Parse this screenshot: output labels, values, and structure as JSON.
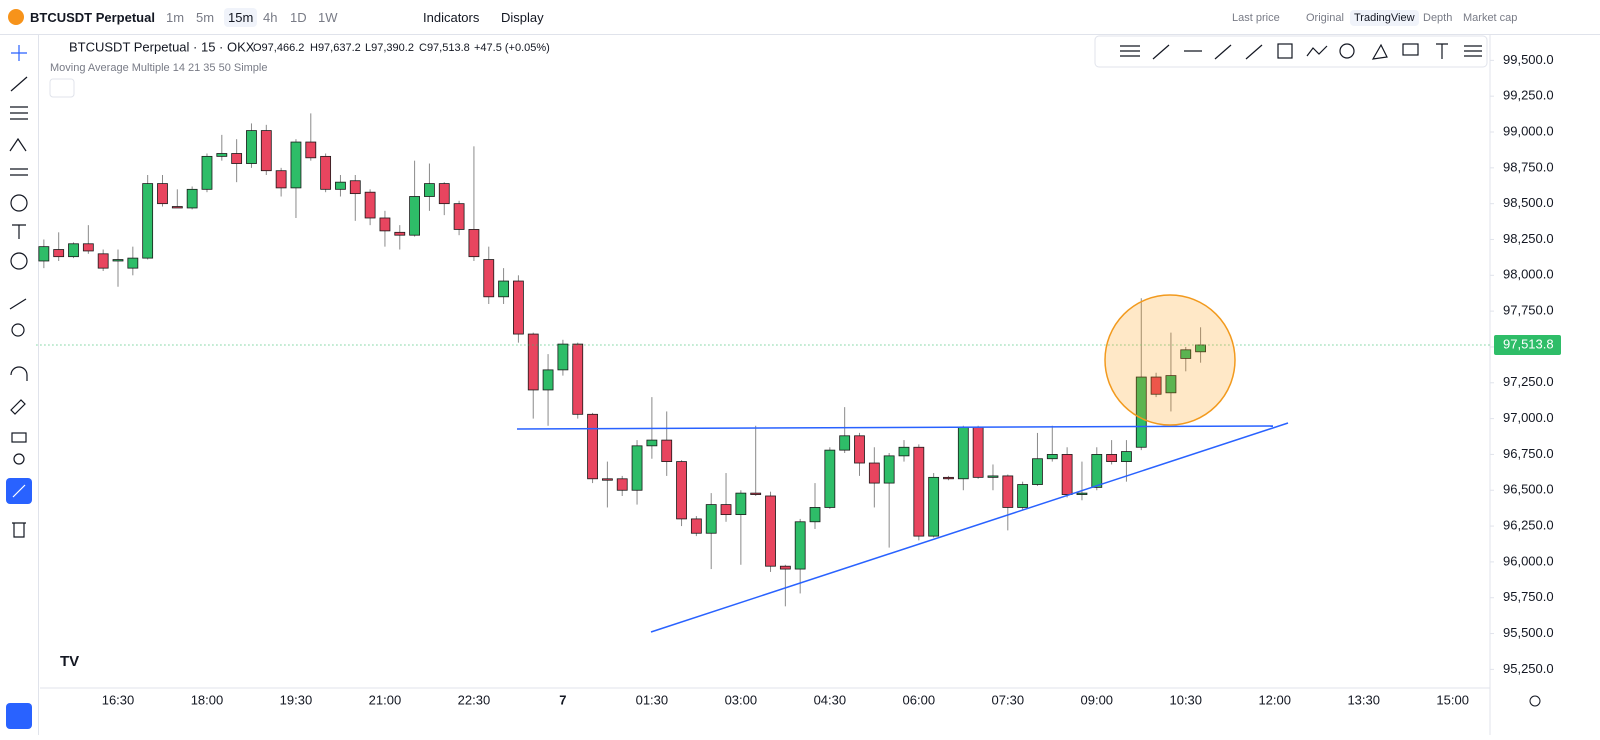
{
  "toolbar": {
    "symbol": "BTCUSDT Perpetual",
    "intervals": [
      "1m",
      "5m",
      "15m",
      "4h",
      "1D",
      "1W"
    ],
    "indicators": "Indicators",
    "display": "Display",
    "price_mode": "Last price",
    "views": [
      "Original",
      "TradingView",
      "Depth",
      "Market cap"
    ]
  },
  "legend": {
    "title": "BTCUSDT Perpetual · 15 · OKX",
    "ohlc": [
      "O97,466.2",
      "H97,637.2",
      "L97,390.2",
      "C97,513.8"
    ],
    "change": "+47.5 (+0.05%)",
    "indicator": "Moving Average Multiple 14 21 35 50 Simple"
  },
  "chart_data": {
    "type": "candlestick",
    "categories": [
      null,
      null,
      null,
      null,
      null,
      "16:30",
      null,
      null,
      null,
      null,
      null,
      "18:00",
      null,
      null,
      null,
      null,
      null,
      "19:30",
      null,
      null,
      null,
      null,
      null,
      "21:00",
      null,
      null,
      null,
      null,
      null,
      "22:30",
      null,
      null,
      null,
      null,
      null,
      "7",
      null,
      null,
      null,
      null,
      null,
      "01:30",
      null,
      null,
      null,
      null,
      null,
      "03:00",
      null,
      null,
      null,
      null,
      null,
      "04:30",
      null,
      null,
      null,
      null,
      null,
      "06:00",
      null,
      null,
      null,
      null,
      null,
      "07:30",
      null,
      null,
      null,
      null,
      null,
      "09:00",
      null,
      null,
      null,
      null,
      null,
      "10:30",
      null,
      null,
      null,
      null,
      null,
      "12:00",
      null,
      null,
      null,
      null,
      null,
      "13:30",
      null,
      null,
      null,
      null,
      null,
      "15:00",
      null,
      null
    ],
    "open": [
      98100,
      98180,
      98130,
      98220,
      98150,
      98100,
      98050,
      98120,
      98640,
      98480,
      98470,
      98600,
      98830,
      98850,
      98780,
      99010,
      98730,
      98610,
      98930,
      98830,
      98600,
      98660,
      98580,
      98400,
      98300,
      98280,
      98550,
      98640,
      98500,
      98320,
      98110,
      97850,
      97960,
      97590,
      97200,
      97340,
      97520,
      97030,
      96580,
      96580,
      96500,
      96810,
      96850,
      96700,
      96300,
      96200,
      96400,
      96330,
      96480,
      96460,
      95970,
      95950,
      96280,
      96380,
      96780,
      96880,
      96690,
      96550,
      96740,
      96800,
      96180,
      96590,
      96580,
      96940,
      96590,
      96600,
      96380,
      96540,
      96720,
      96750,
      96470,
      96520,
      96750,
      96700,
      96800,
      97290,
      97180,
      97420,
      97466.2,
      null,
      null,
      null,
      null,
      null,
      null,
      null,
      null,
      null,
      null,
      null,
      null,
      null,
      null,
      null,
      null,
      null,
      null,
      null
    ],
    "high": [
      98250,
      98300,
      98230,
      98350,
      98180,
      98180,
      98200,
      98700,
      98700,
      98600,
      98620,
      98850,
      98980,
      98950,
      99060,
      99050,
      98750,
      98950,
      99130,
      98850,
      98700,
      98700,
      98600,
      98450,
      98350,
      98800,
      98780,
      98650,
      98520,
      98900,
      98200,
      98050,
      98000,
      97600,
      97450,
      97550,
      97530,
      97040,
      96700,
      96600,
      96850,
      97150,
      97050,
      96710,
      96320,
      96480,
      96620,
      96500,
      96950,
      96490,
      95980,
      96300,
      96550,
      96800,
      97080,
      96900,
      96800,
      96760,
      96850,
      96820,
      96620,
      96600,
      96950,
      96950,
      96680,
      96610,
      96560,
      96900,
      96950,
      96800,
      96700,
      96800,
      96850,
      96850,
      97840,
      97320,
      97600,
      97500,
      97637.2,
      null,
      null,
      null,
      null,
      null,
      null,
      null,
      null,
      null,
      null,
      null,
      null,
      null,
      null,
      null,
      null,
      null,
      null,
      null
    ],
    "low": [
      98050,
      98100,
      98120,
      98150,
      98030,
      97920,
      98000,
      98110,
      98480,
      98470,
      98460,
      98580,
      98800,
      98650,
      98750,
      98700,
      98550,
      98400,
      98800,
      98580,
      98550,
      98380,
      98350,
      98200,
      98180,
      98270,
      98450,
      98420,
      98280,
      98100,
      97800,
      97800,
      97530,
      97000,
      96950,
      97300,
      97000,
      96550,
      96380,
      96460,
      96400,
      96720,
      96600,
      96250,
      96180,
      95950,
      96280,
      95980,
      96460,
      95930,
      95690,
      95780,
      96230,
      96370,
      96760,
      96600,
      96380,
      96100,
      96700,
      96150,
      96170,
      96570,
      96500,
      96580,
      96500,
      96220,
      96360,
      96530,
      96700,
      96450,
      96430,
      96500,
      96680,
      96560,
      96780,
      97150,
      97050,
      97330,
      97390.2,
      null,
      null,
      null,
      null,
      null,
      null,
      null,
      null,
      null,
      null,
      null,
      null,
      null,
      null,
      null,
      null,
      null,
      null,
      null
    ],
    "close": [
      98200,
      98130,
      98220,
      98170,
      98050,
      98110,
      98120,
      98640,
      98500,
      98470,
      98600,
      98830,
      98850,
      98780,
      99010,
      98730,
      98610,
      98930,
      98820,
      98600,
      98650,
      98570,
      98400,
      98310,
      98280,
      98550,
      98640,
      98500,
      98320,
      98130,
      97850,
      97960,
      97590,
      97200,
      97340,
      97520,
      97030,
      96580,
      96570,
      96500,
      96810,
      96850,
      96700,
      96300,
      96200,
      96400,
      96330,
      96480,
      96470,
      95970,
      95950,
      96280,
      96380,
      96780,
      96880,
      96690,
      96550,
      96740,
      96800,
      96180,
      96590,
      96580,
      96940,
      96590,
      96600,
      96380,
      96540,
      96720,
      96750,
      96470,
      96480,
      96750,
      96700,
      96770,
      97290,
      97170,
      97300,
      97480,
      97513.8,
      null,
      null,
      null,
      null,
      null,
      null,
      null,
      null,
      null,
      null,
      null,
      null,
      null,
      null,
      null,
      null,
      null,
      null,
      null
    ],
    "up_color": "#2ebd68",
    "down_color": "#e8455f",
    "ylim": [
      95120,
      99670
    ],
    "yticks": [
      {
        "value": 95250,
        "label": "95,250.0"
      },
      {
        "value": 95500,
        "label": "95,500.0"
      },
      {
        "value": 95750,
        "label": "95,750.0"
      },
      {
        "value": 96000,
        "label": "96,000.0"
      },
      {
        "value": 96250,
        "label": "96,250.0"
      },
      {
        "value": 96500,
        "label": "96,500.0"
      },
      {
        "value": 96750,
        "label": "96,750.0"
      },
      {
        "value": 97000,
        "label": "97,000.0"
      },
      {
        "value": 97250,
        "label": "97,250.0"
      },
      {
        "value": 97500,
        "label": "97,500.0"
      },
      {
        "value": 97750,
        "label": "97,750.0"
      },
      {
        "value": 98000,
        "label": "98,000.0"
      },
      {
        "value": 98250,
        "label": "98,250.0"
      },
      {
        "value": 98500,
        "label": "98,500.0"
      },
      {
        "value": 98750,
        "label": "98,750.0"
      },
      {
        "value": 99000,
        "label": "99,000.0"
      },
      {
        "value": 99250,
        "label": "99,250.0"
      },
      {
        "value": 99500,
        "label": "99,500.0"
      }
    ],
    "grid": false,
    "last_price_label": "97,513.8"
  }
}
